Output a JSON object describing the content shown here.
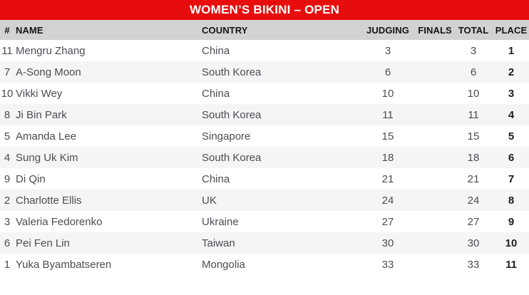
{
  "banner": {
    "title": "WOMEN’S BIKINI – OPEN"
  },
  "table": {
    "columns": {
      "number": "#",
      "name": "NAME",
      "country": "COUNTRY",
      "judging": "JUDGING",
      "finals": "FINALS",
      "total": "TOTAL",
      "place": "PLACE"
    },
    "rows": [
      {
        "num": "11",
        "name": "Mengru Zhang",
        "country": "China",
        "judging": "3",
        "finals": "",
        "total": "3",
        "place": "1"
      },
      {
        "num": "7",
        "name": "A-Song Moon",
        "country": "South Korea",
        "judging": "6",
        "finals": "",
        "total": "6",
        "place": "2"
      },
      {
        "num": "10",
        "name": "Vikki Wey",
        "country": "China",
        "judging": "10",
        "finals": "",
        "total": "10",
        "place": "3"
      },
      {
        "num": "8",
        "name": "Ji Bin Park",
        "country": "South Korea",
        "judging": "11",
        "finals": "",
        "total": "11",
        "place": "4"
      },
      {
        "num": "5",
        "name": "Amanda Lee",
        "country": "Singapore",
        "judging": "15",
        "finals": "",
        "total": "15",
        "place": "5"
      },
      {
        "num": "4",
        "name": "Sung Uk Kim",
        "country": "South Korea",
        "judging": "18",
        "finals": "",
        "total": "18",
        "place": "6"
      },
      {
        "num": "9",
        "name": "Di Qin",
        "country": "China",
        "judging": "21",
        "finals": "",
        "total": "21",
        "place": "7"
      },
      {
        "num": "2",
        "name": "Charlotte Ellis",
        "country": "UK",
        "judging": "24",
        "finals": "",
        "total": "24",
        "place": "8"
      },
      {
        "num": "3",
        "name": "Valeria Fedorenko",
        "country": "Ukraine",
        "judging": "27",
        "finals": "",
        "total": "27",
        "place": "9"
      },
      {
        "num": "6",
        "name": "Pei Fen Lin",
        "country": "Taiwan",
        "judging": "30",
        "finals": "",
        "total": "30",
        "place": "10"
      },
      {
        "num": "1",
        "name": "Yuka Byambatseren",
        "country": "Mongolia",
        "judging": "33",
        "finals": "",
        "total": "33",
        "place": "11"
      }
    ]
  },
  "colors": {
    "banner_red": "#e80d0d",
    "header_gray": "#d2d2d2",
    "stripe_gray": "#f5f5f5",
    "data_text": "#4a4d54",
    "header_text": "#141414",
    "place_text": "#1d1d1d"
  }
}
